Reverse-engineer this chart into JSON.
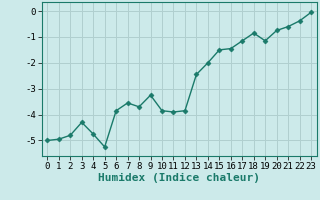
{
  "x": [
    0,
    1,
    2,
    3,
    4,
    5,
    6,
    7,
    8,
    9,
    10,
    11,
    12,
    13,
    14,
    15,
    16,
    17,
    18,
    19,
    20,
    21,
    22,
    23
  ],
  "y": [
    -5.0,
    -4.95,
    -4.8,
    -4.3,
    -4.75,
    -5.25,
    -3.85,
    -3.55,
    -3.7,
    -3.25,
    -3.85,
    -3.9,
    -3.85,
    -2.45,
    -2.0,
    -1.5,
    -1.45,
    -1.15,
    -0.85,
    -1.15,
    -0.75,
    -0.6,
    -0.38,
    -0.05
  ],
  "line_color": "#1a7a6a",
  "marker": "D",
  "markersize": 2.5,
  "linewidth": 1.0,
  "bg_color": "#cceaea",
  "grid_color": "#b0cfcf",
  "xlabel": "Humidex (Indice chaleur)",
  "xlabel_fontsize": 8,
  "xlim": [
    -0.5,
    23.5
  ],
  "ylim": [
    -5.6,
    0.35
  ],
  "yticks": [
    0,
    -1,
    -2,
    -3,
    -4,
    -5
  ],
  "xticks": [
    0,
    1,
    2,
    3,
    4,
    5,
    6,
    7,
    8,
    9,
    10,
    11,
    12,
    13,
    14,
    15,
    16,
    17,
    18,
    19,
    20,
    21,
    22,
    23
  ],
  "tick_fontsize": 6.5
}
